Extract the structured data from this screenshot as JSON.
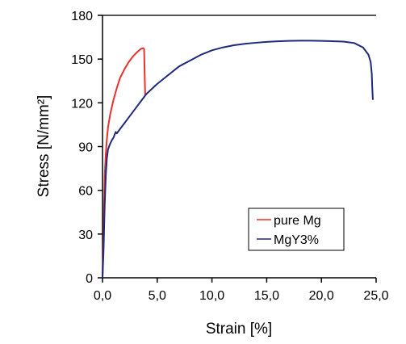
{
  "chart_data": {
    "type": "line",
    "title": "",
    "xlabel": "Strain [%]",
    "ylabel": "Stress [N/mm²]",
    "xlim": [
      0,
      25
    ],
    "ylim": [
      0,
      180
    ],
    "x_ticks": [
      0,
      5,
      10,
      15,
      20,
      25
    ],
    "x_tick_labels": [
      "0,0",
      "5,0",
      "10,0",
      "15,0",
      "20,0",
      "25,0"
    ],
    "y_ticks": [
      0,
      30,
      60,
      90,
      120,
      150,
      180
    ],
    "y_tick_labels": [
      "0",
      "30",
      "60",
      "90",
      "120",
      "150",
      "180"
    ],
    "grid": false,
    "legend_position": "bottom-right",
    "series": [
      {
        "name": "pure Mg",
        "color": "#e8322b",
        "points": [
          [
            0,
            0
          ],
          [
            0.05,
            15
          ],
          [
            0.1,
            30
          ],
          [
            0.15,
            50
          ],
          [
            0.2,
            70
          ],
          [
            0.3,
            85
          ],
          [
            0.4,
            95
          ],
          [
            0.5,
            103
          ],
          [
            0.7,
            112
          ],
          [
            1.0,
            122
          ],
          [
            1.3,
            130
          ],
          [
            1.6,
            137
          ],
          [
            2.0,
            143
          ],
          [
            2.4,
            148
          ],
          [
            2.8,
            152
          ],
          [
            3.2,
            155
          ],
          [
            3.5,
            157
          ],
          [
            3.7,
            157.5
          ],
          [
            3.8,
            157
          ],
          [
            3.85,
            140
          ],
          [
            3.9,
            125
          ]
        ]
      },
      {
        "name": "MgY3%",
        "color": "#1e2a7a",
        "points": [
          [
            0,
            0
          ],
          [
            0.1,
            20
          ],
          [
            0.2,
            50
          ],
          [
            0.3,
            70
          ],
          [
            0.4,
            82
          ],
          [
            0.5,
            88
          ],
          [
            0.7,
            92
          ],
          [
            0.9,
            95
          ],
          [
            1.0,
            96
          ],
          [
            1.2,
            100
          ],
          [
            1.3,
            99
          ],
          [
            1.5,
            101
          ],
          [
            1.7,
            103
          ],
          [
            2.0,
            106
          ],
          [
            2.5,
            111
          ],
          [
            3.0,
            116
          ],
          [
            3.5,
            121
          ],
          [
            4.0,
            126
          ],
          [
            5.0,
            133
          ],
          [
            6.0,
            139
          ],
          [
            7.0,
            145
          ],
          [
            8.0,
            149
          ],
          [
            9.0,
            153
          ],
          [
            10.0,
            156
          ],
          [
            11.0,
            158
          ],
          [
            12.0,
            159.5
          ],
          [
            13.0,
            160.5
          ],
          [
            14.0,
            161.2
          ],
          [
            15.0,
            161.8
          ],
          [
            16.0,
            162.2
          ],
          [
            17.0,
            162.5
          ],
          [
            18.0,
            162.6
          ],
          [
            19.0,
            162.6
          ],
          [
            20.0,
            162.5
          ],
          [
            21.0,
            162.3
          ],
          [
            22.0,
            162
          ],
          [
            23.0,
            161
          ],
          [
            23.8,
            158
          ],
          [
            24.3,
            153
          ],
          [
            24.5,
            148
          ],
          [
            24.6,
            140
          ],
          [
            24.65,
            130
          ],
          [
            24.7,
            122
          ]
        ]
      }
    ]
  }
}
